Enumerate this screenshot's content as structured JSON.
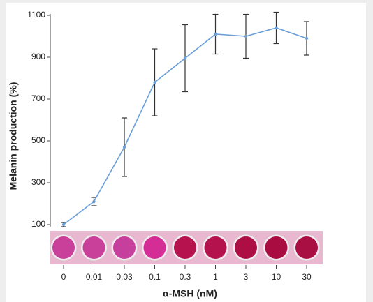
{
  "chart_data": {
    "type": "line",
    "x_label": "α-MSH (nM)",
    "y_label": "Melanin production (%)",
    "categories": [
      "0",
      "0.01",
      "0.03",
      "0.1",
      "0.3",
      "1",
      "3",
      "10",
      "30"
    ],
    "series": [
      {
        "color": "#6b9fd8",
        "values": [
          100,
          210,
          470,
          780,
          895,
          1010,
          1000,
          1040,
          990
        ],
        "errors": [
          10,
          20,
          140,
          160,
          160,
          95,
          105,
          75,
          80
        ]
      }
    ],
    "ylim": [
      100,
      1100
    ],
    "yticks": [
      100,
      300,
      500,
      700,
      900,
      1100
    ]
  }
}
